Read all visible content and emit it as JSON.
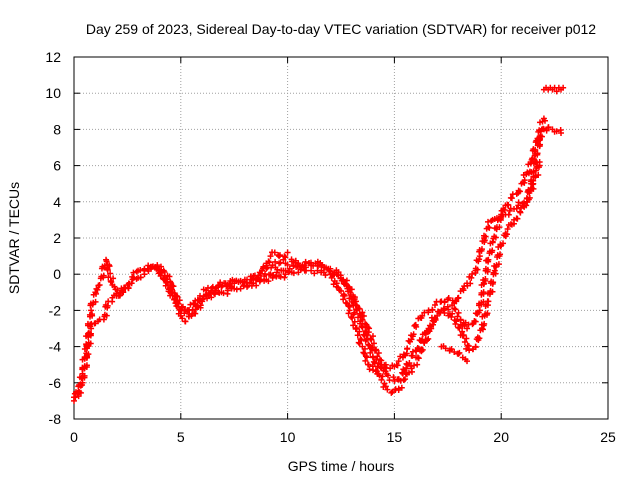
{
  "chart_data": {
    "type": "scatter",
    "title": "Day 259 of 2023, Sidereal Day-to-day VTEC variation (SDTVAR) for receiver p012",
    "xlabel": "GPS time / hours",
    "ylabel": "SDTVAR / TECUs",
    "xlim": [
      0,
      25
    ],
    "ylim": [
      -8,
      12
    ],
    "xticks": [
      0,
      5,
      10,
      15,
      20,
      25
    ],
    "yticks": [
      -8,
      -6,
      -4,
      -2,
      0,
      2,
      4,
      6,
      8,
      10,
      12
    ],
    "grid": true,
    "marker": "+",
    "color": "#ff0000",
    "series": [
      {
        "name": "trace-a",
        "x": [
          0.0,
          0.2,
          0.4,
          0.6,
          0.8,
          1.0,
          1.2,
          1.4,
          1.6,
          1.8,
          2.0,
          2.2,
          2.5,
          2.8,
          3.0,
          3.3,
          3.6,
          3.9,
          4.2,
          4.5,
          4.8,
          5.0,
          5.2,
          5.5,
          5.8,
          6.0,
          6.3,
          6.6,
          6.9,
          7.2,
          7.5,
          7.8,
          8.1,
          8.4,
          8.7,
          9.0,
          9.3,
          9.6,
          9.9,
          10.2,
          10.5,
          10.8,
          11.1,
          11.4,
          11.7,
          12.0,
          12.3,
          12.6,
          12.9,
          13.2,
          13.5,
          13.8,
          14.0,
          14.2,
          14.4,
          14.6,
          14.8,
          15.0,
          15.2,
          15.4,
          15.6,
          15.8,
          16.0,
          16.3,
          16.6,
          16.9,
          17.2,
          17.5,
          17.8,
          18.0,
          18.2,
          18.4,
          18.6,
          18.8,
          19.0,
          19.2,
          19.4,
          19.6,
          19.8,
          20.0,
          20.2,
          20.4,
          20.6,
          20.8,
          21.0,
          21.2,
          21.4,
          21.6,
          21.8,
          22.0,
          22.2,
          22.4,
          22.6,
          22.8
        ],
        "y": [
          -7.0,
          -6.6,
          -6.0,
          -4.5,
          -3.0,
          -2.7,
          -2.5,
          -2.5,
          -1.5,
          -1.3,
          -1.2,
          -1.0,
          -0.6,
          -0.2,
          0.2,
          0.3,
          0.4,
          0.3,
          -0.2,
          -0.8,
          -1.6,
          -2.3,
          -2.6,
          -2.3,
          -1.8,
          -1.5,
          -1.2,
          -1.1,
          -1.0,
          -0.9,
          -0.8,
          -0.8,
          -0.7,
          -0.5,
          -0.4,
          -0.3,
          -0.2,
          -0.1,
          0.0,
          0.1,
          0.1,
          0.2,
          0.2,
          0.2,
          0.1,
          0.0,
          -0.5,
          -1.2,
          -2.0,
          -3.0,
          -4.0,
          -5.0,
          -5.3,
          -5.5,
          -5.2,
          -5.0,
          -5.2,
          -5.1,
          -4.8,
          -4.6,
          -4.1,
          -3.6,
          -2.8,
          -2.3,
          -2.0,
          -1.7,
          -1.5,
          -1.4,
          -1.6,
          -1.3,
          -0.8,
          -0.5,
          -0.2,
          0.2,
          1.0,
          2.0,
          2.6,
          3.0,
          3.1,
          3.2,
          3.3,
          3.5,
          3.6,
          3.8,
          3.9,
          4.2,
          5.0,
          6.2,
          7.4,
          8.0,
          8.1,
          8.0,
          7.9,
          7.8
        ]
      },
      {
        "name": "trace-b",
        "x": [
          0.0,
          0.2,
          0.4,
          0.6,
          0.8,
          1.0,
          1.2,
          1.5,
          1.8,
          2.1,
          2.4,
          2.7,
          3.0,
          3.3,
          3.6,
          3.9,
          4.2,
          4.5,
          4.8,
          5.1,
          5.4,
          5.7,
          6.0,
          6.3,
          6.6,
          6.9,
          7.2,
          7.5,
          7.8,
          8.1,
          8.4,
          8.7,
          9.0,
          9.3,
          9.6,
          9.9,
          10.2,
          10.5,
          10.8,
          11.1,
          11.4,
          11.7,
          12.0,
          12.3,
          12.6,
          12.9,
          13.2,
          13.5,
          13.8,
          14.1,
          14.4,
          14.7,
          15.0,
          15.2,
          15.4,
          15.6,
          15.8,
          16.0,
          16.3,
          16.6,
          16.9,
          17.2,
          17.5,
          17.8,
          18.1,
          18.4,
          18.7,
          19.0,
          19.2,
          19.4,
          19.6,
          19.8,
          20.0,
          20.2,
          20.5,
          20.8,
          21.1,
          21.4,
          21.7,
          22.0
        ],
        "y": [
          -6.8,
          -6.2,
          -5.5,
          -4.0,
          -2.0,
          -1.0,
          -0.6,
          0.8,
          -0.6,
          -1.2,
          -0.8,
          -0.5,
          -0.2,
          0.0,
          0.4,
          0.5,
          0.2,
          -0.4,
          -1.2,
          -1.8,
          -2.2,
          -1.8,
          -1.4,
          -1.1,
          -0.9,
          -0.7,
          -0.6,
          -0.5,
          -0.4,
          -0.3,
          -0.1,
          0.1,
          0.3,
          0.5,
          0.6,
          0.6,
          0.7,
          0.6,
          0.5,
          0.5,
          0.5,
          0.4,
          0.3,
          0.0,
          -0.3,
          -0.8,
          -1.5,
          -2.3,
          -3.2,
          -4.2,
          -5.0,
          -5.6,
          -5.9,
          -5.8,
          -5.5,
          -5.0,
          -4.5,
          -4.2,
          -3.6,
          -3.0,
          -2.4,
          -2.0,
          -1.8,
          -1.9,
          -2.5,
          -3.0,
          -2.7,
          -2.0,
          -0.5,
          0.8,
          1.8,
          2.6,
          3.3,
          3.8,
          4.2,
          4.5,
          5.2,
          6.2,
          7.5,
          8.6
        ]
      },
      {
        "name": "trace-c",
        "x": [
          3.5,
          3.8,
          4.1,
          4.4,
          4.7,
          5.0,
          5.3,
          5.6,
          5.9,
          6.2,
          6.5,
          6.8,
          7.1,
          7.4,
          7.7,
          8.0,
          8.3,
          8.6,
          8.9,
          9.2,
          9.5,
          9.8,
          10.1,
          10.4,
          10.7,
          11.0,
          11.3,
          11.6,
          11.9,
          12.2,
          12.5,
          12.8,
          13.1,
          13.4,
          13.7,
          14.0,
          14.3,
          14.6,
          14.9,
          15.2,
          15.5,
          15.8,
          16.1,
          16.4,
          16.7,
          17.0,
          17.3,
          17.6,
          17.9,
          18.2,
          18.5,
          18.8,
          19.1,
          19.4,
          19.7,
          20.0,
          20.3,
          20.6,
          20.9,
          21.2,
          21.5,
          21.8
        ],
        "y": [
          0.3,
          0.4,
          0.1,
          -0.6,
          -1.4,
          -2.0,
          -2.0,
          -1.6,
          -1.2,
          -0.9,
          -0.7,
          -0.6,
          -0.5,
          -0.5,
          -0.4,
          -0.3,
          -0.3,
          -0.2,
          -0.1,
          0.0,
          0.1,
          0.2,
          0.3,
          0.4,
          0.5,
          0.6,
          0.6,
          0.5,
          0.3,
          0.1,
          -0.2,
          -0.8,
          -1.6,
          -2.6,
          -3.6,
          -4.6,
          -5.6,
          -6.2,
          -6.5,
          -6.4,
          -5.8,
          -5.2,
          -4.6,
          -3.8,
          -3.0,
          -2.3,
          -2.0,
          -2.2,
          -2.6,
          -3.4,
          -4.2,
          -4.0,
          -3.0,
          -1.5,
          0.2,
          1.6,
          2.5,
          3.0,
          3.4,
          4.0,
          5.0,
          6.2
        ]
      },
      {
        "name": "trace-d",
        "x": [
          8.8,
          9.0,
          9.2,
          9.4,
          9.6,
          9.8,
          10.0
        ],
        "y": [
          0.2,
          0.6,
          1.0,
          1.2,
          1.0,
          0.8,
          1.2
        ]
      },
      {
        "name": "trace-e",
        "x": [
          17.2,
          17.4,
          17.6,
          17.8,
          18.0,
          18.2,
          18.4
        ],
        "y": [
          -4.0,
          -4.1,
          -4.2,
          -4.3,
          -4.4,
          -4.6,
          -4.8
        ]
      },
      {
        "name": "trace-f",
        "x": [
          22.0,
          22.1,
          22.2,
          22.3,
          22.4,
          22.5,
          22.6,
          22.7,
          22.8,
          22.9
        ],
        "y": [
          10.2,
          10.3,
          10.2,
          10.3,
          10.2,
          10.3,
          10.1,
          10.3,
          10.2,
          10.3
        ]
      }
    ]
  }
}
